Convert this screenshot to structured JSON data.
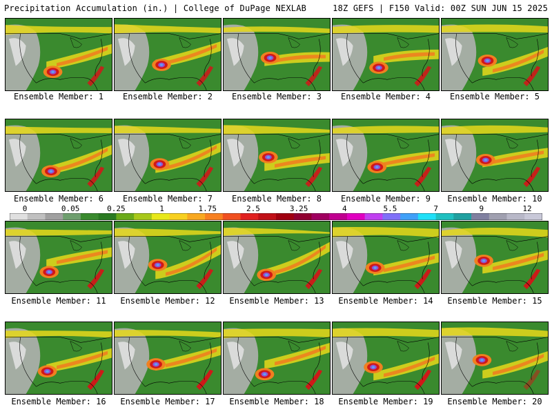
{
  "header": {
    "title_left": "Precipitation Accumulation (in.) | College of DuPage NEXLAB",
    "title_right": "18Z GEFS | F150 Valid: 00Z SUN JUN 15 2025"
  },
  "members": [
    {
      "label": "Ensemble Member: 1"
    },
    {
      "label": "Ensemble Member: 2"
    },
    {
      "label": "Ensemble Member: 3"
    },
    {
      "label": "Ensemble Member: 4"
    },
    {
      "label": "Ensemble Member: 5"
    },
    {
      "label": "Ensemble Member: 6"
    },
    {
      "label": "Ensemble Member: 7"
    },
    {
      "label": "Ensemble Member: 8"
    },
    {
      "label": "Ensemble Member: 9"
    },
    {
      "label": "Ensemble Member: 10"
    },
    {
      "label": "Ensemble Member: 11"
    },
    {
      "label": "Ensemble Member: 12"
    },
    {
      "label": "Ensemble Member: 13"
    },
    {
      "label": "Ensemble Member: 14"
    },
    {
      "label": "Ensemble Member: 15"
    },
    {
      "label": "Ensemble Member: 16"
    },
    {
      "label": "Ensemble Member: 17"
    },
    {
      "label": "Ensemble Member: 18"
    },
    {
      "label": "Ensemble Member: 19"
    },
    {
      "label": "Ensemble Member: 20"
    }
  ],
  "colorbar": {
    "labels": [
      "0",
      "0.05",
      "0.25",
      "1",
      "1.75",
      "2.5",
      "3.25",
      "4",
      "5.5",
      "7",
      "9",
      "12"
    ],
    "colors": [
      "#e0e0e0",
      "#c0c0c0",
      "#a0a0a0",
      "#6e9e6e",
      "#3a8a2e",
      "#2a7a22",
      "#6aaa1a",
      "#a8c81a",
      "#e8e81a",
      "#f8d020",
      "#f8a820",
      "#f88020",
      "#f05020",
      "#e02020",
      "#c01018",
      "#a00010",
      "#900030",
      "#a00060",
      "#c00090",
      "#e000c0",
      "#c040f0",
      "#8070f8",
      "#40a0f8",
      "#20e0f8",
      "#20c0c0",
      "#20a0a0",
      "#8080a0",
      "#a0a0b0",
      "#b8b8c8",
      "#c8c8d8"
    ]
  },
  "colors": {
    "green": "#3a8a2e",
    "gray": "#b0b0b0",
    "yellow": "#e8d81a",
    "orange": "#f08020",
    "red": "#d01818",
    "purple": "#9050d0",
    "cyan": "#60a0f0"
  }
}
